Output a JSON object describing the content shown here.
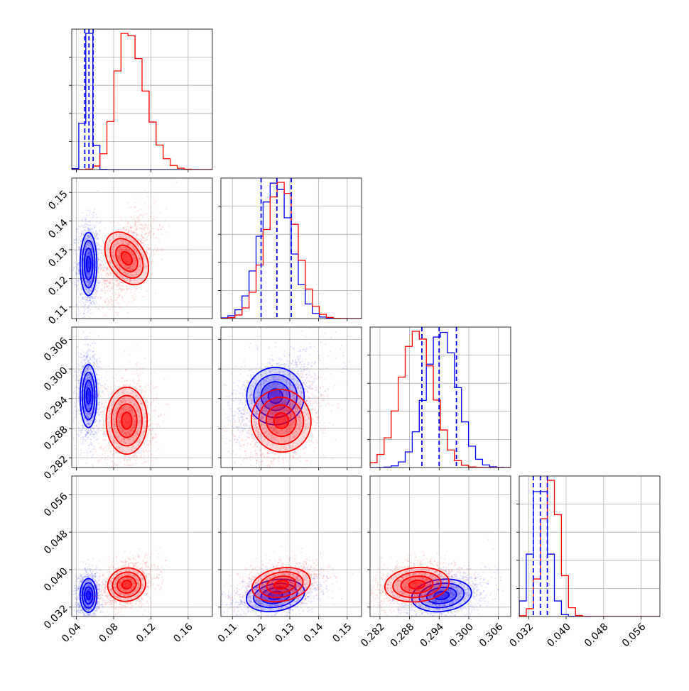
{
  "chart_data": {
    "type": "corner",
    "parameters": 4,
    "series": [
      {
        "name": "",
        "color": "#0000ff",
        "means": [
          0.053,
          0.125,
          0.2945,
          0.0345
        ],
        "sds": [
          0.0045,
          0.0055,
          0.0032,
          0.0018
        ],
        "corr": [
          [
            1,
            0,
            0,
            0
          ],
          [
            0,
            1,
            0.45,
            0.35
          ],
          [
            0,
            0.45,
            1,
            0.25
          ],
          [
            0,
            0.35,
            0.25,
            1
          ]
        ],
        "quantiles": [
          [
            0.049,
            0.0535,
            0.058
          ],
          [
            0.12,
            0.1255,
            0.1305
          ],
          [
            0.2905,
            0.294,
            0.2975
          ],
          [
            0.033,
            0.0345,
            0.036
          ]
        ]
      },
      {
        "name": "",
        "color": "#ff0000",
        "means": [
          0.094,
          0.127,
          0.2895,
          0.0368
        ],
        "sds": [
          0.0135,
          0.0055,
          0.0034,
          0.0019
        ],
        "corr": [
          [
            1,
            0.45,
            0,
            0.35
          ],
          [
            0.45,
            1,
            0.3,
            0.35
          ],
          [
            0,
            0.3,
            1,
            0.2
          ],
          [
            0.35,
            0.35,
            0.2,
            1
          ]
        ]
      }
    ],
    "ranges": [
      [
        0.035,
        0.186
      ],
      [
        0.106,
        0.155
      ],
      [
        0.28,
        0.3085
      ],
      [
        0.03,
        0.06
      ]
    ],
    "ticks": [
      {
        "values": [
          0.04,
          0.08,
          0.12,
          0.16
        ],
        "labels": [
          "0.04",
          "0.08",
          "0.12",
          "0.16"
        ]
      },
      {
        "values": [
          0.11,
          0.12,
          0.13,
          0.14,
          0.15
        ],
        "labels": [
          "0.11",
          "0.12",
          "0.13",
          "0.14",
          "0.15"
        ]
      },
      {
        "values": [
          0.282,
          0.288,
          0.294,
          0.3,
          0.306
        ],
        "labels": [
          "0.282",
          "0.288",
          "0.294",
          "0.300",
          "0.306"
        ]
      },
      {
        "values": [
          0.032,
          0.04,
          0.048,
          0.056
        ],
        "labels": [
          "0.032",
          "0.040",
          "0.048",
          "0.056"
        ]
      }
    ],
    "contour_levels_sigma": [
      0.5,
      1.0,
      1.5,
      2.0
    ],
    "quantile_line_style": "dashed",
    "grid": true
  }
}
